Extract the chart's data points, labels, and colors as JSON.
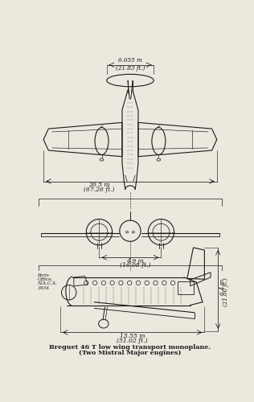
{
  "background_color": "#ede8de",
  "line_color": "#1a1a1a",
  "title_line1": "Breguet 46 T low wing transport monoplane.",
  "title_line2": "(Two Mistral Major engines)",
  "dim_span_line1": "6.655 m",
  "dim_span_line2": "(21.83 ft.)",
  "dim_wingspan_line1": "20.5 m",
  "dim_wingspan_line2": "(67.26 ft.)",
  "dim_gear_line1": "4.9 m",
  "dim_gear_line2": "(16.08 ft.)",
  "dim_length_line1": "15.55 m",
  "dim_length_line2": "(51.02 ft.)",
  "dim_height_line1": "6.4 m",
  "dim_height_line2": "(21.00 ft.)",
  "annotation_line1": "Paris",
  "annotation_line2": "Office,",
  "annotation_line3": "N.A.C.A.",
  "annotation_line4": "1934"
}
